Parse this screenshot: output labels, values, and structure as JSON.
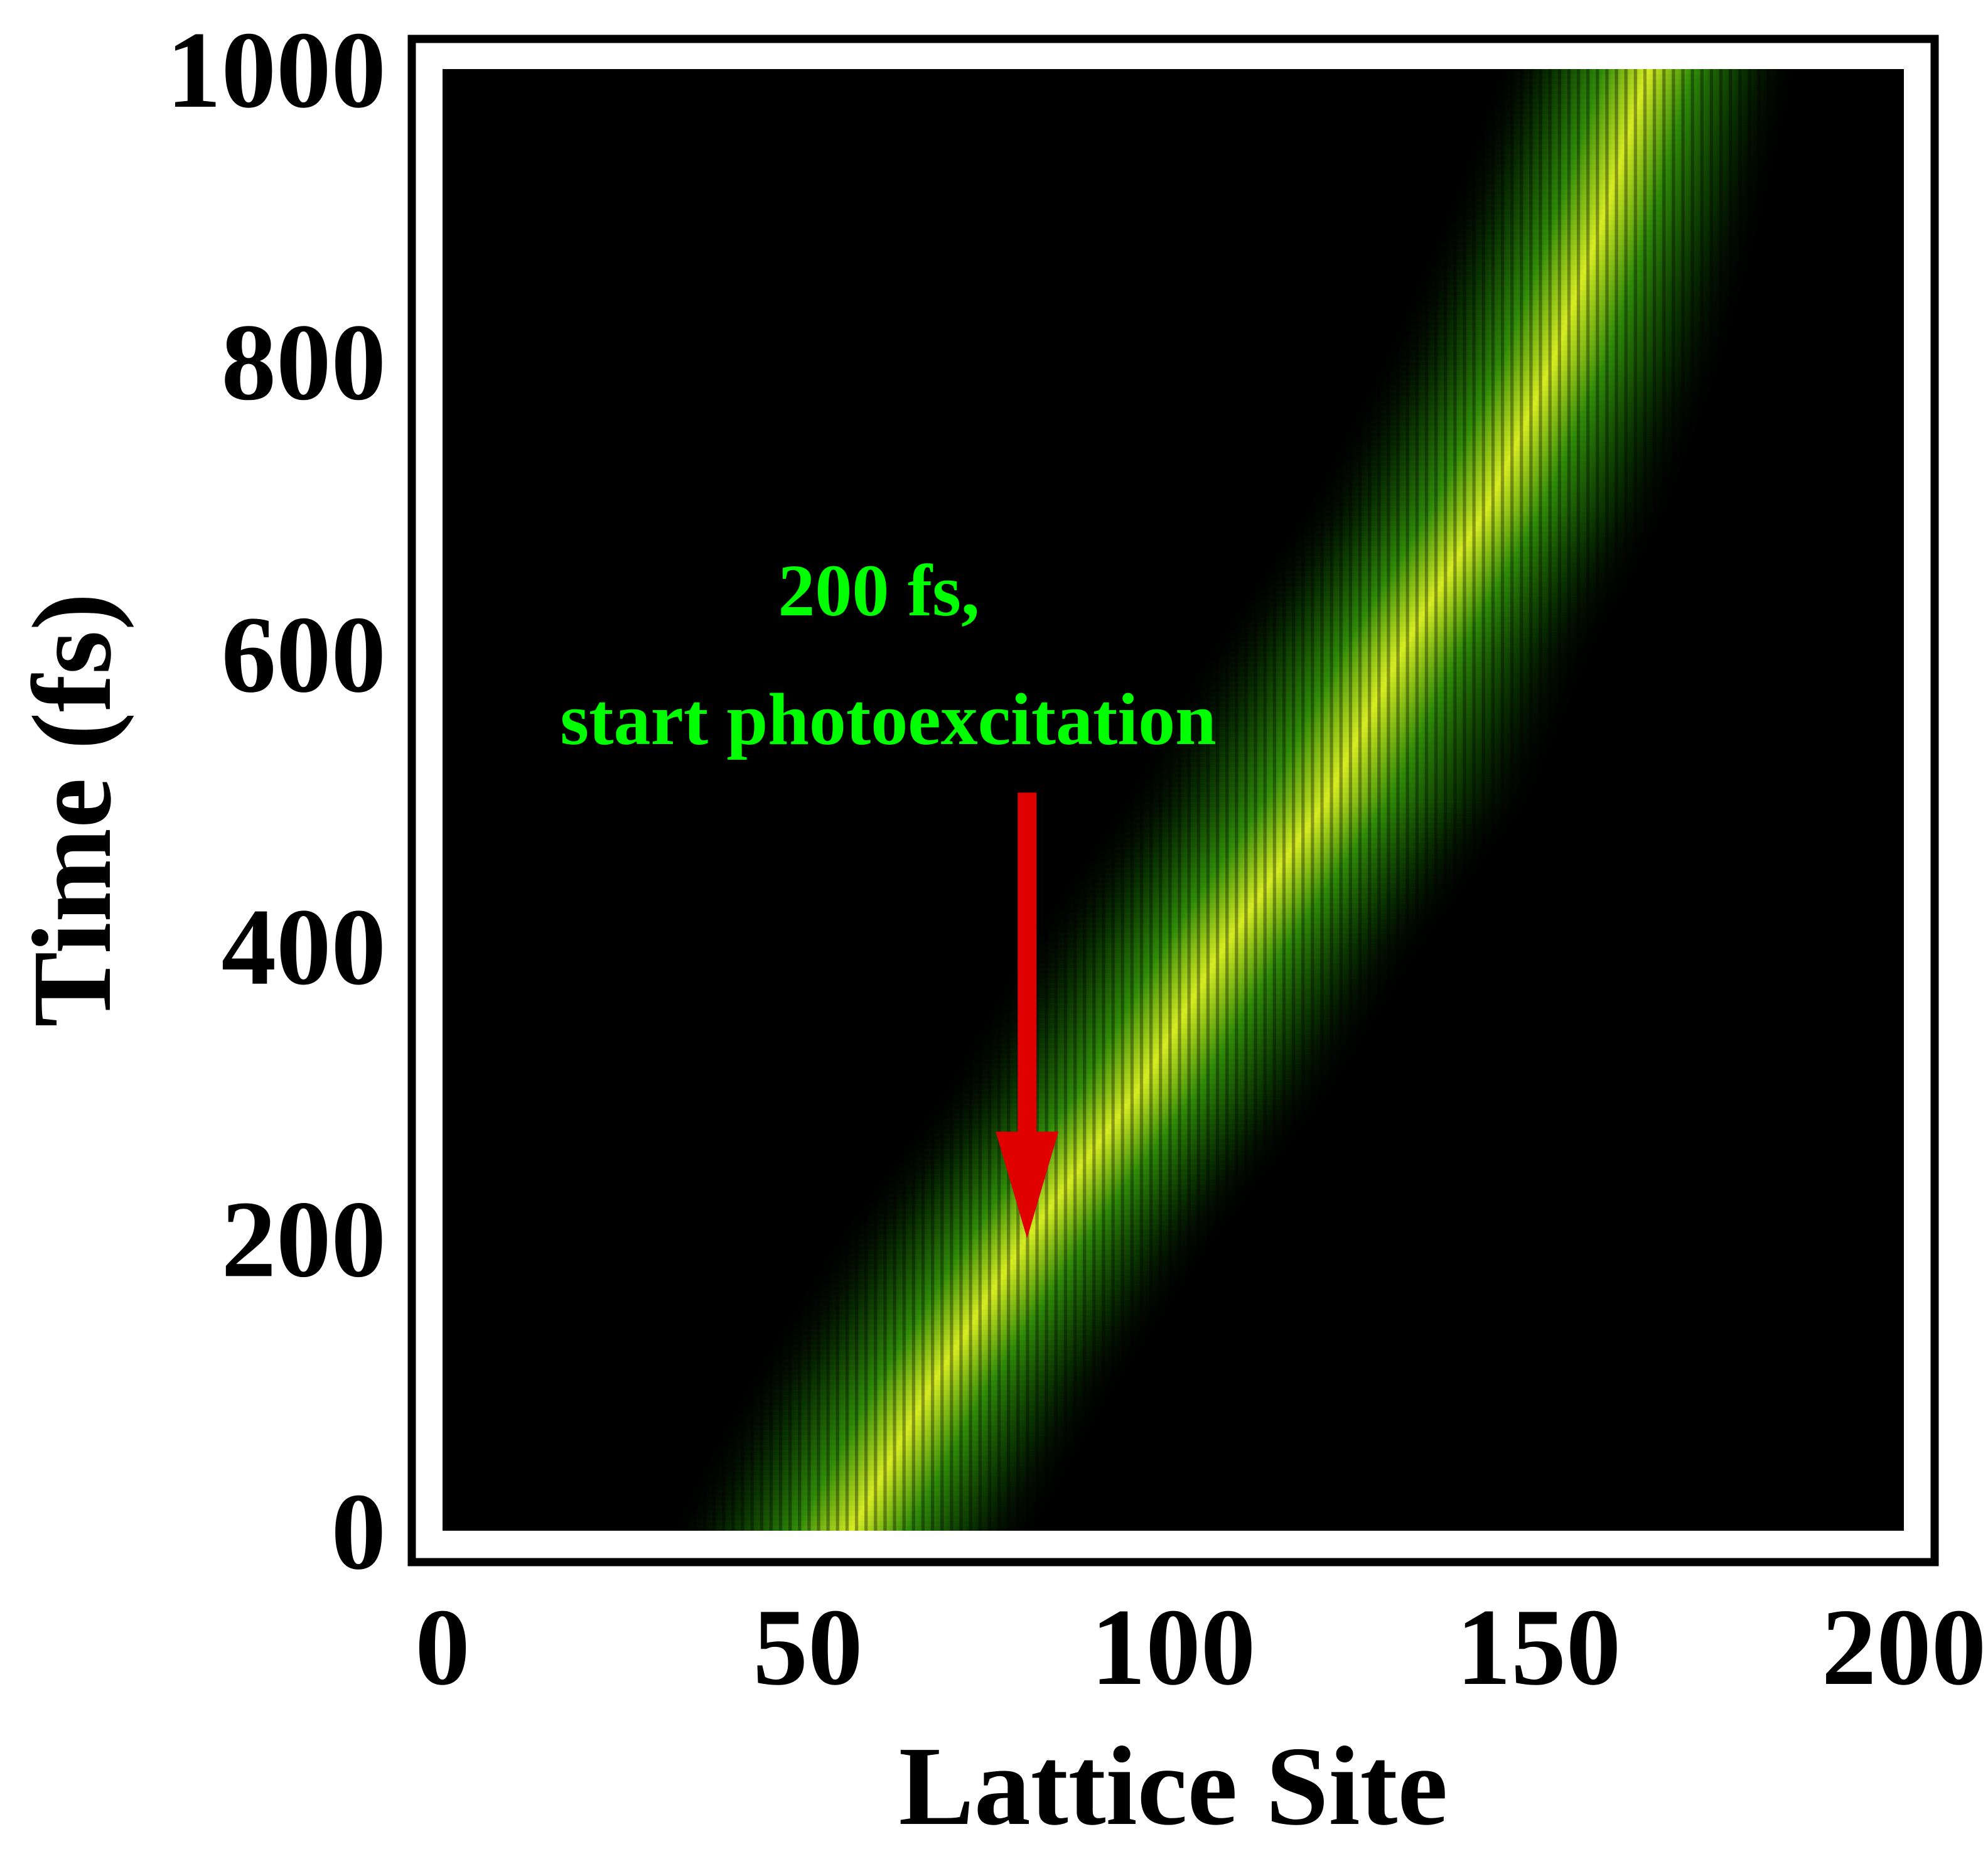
{
  "chart_data": {
    "type": "heatmap",
    "title": "",
    "xlabel": "Lattice Site",
    "ylabel": "Time (fs)",
    "xlim": [
      0,
      200
    ],
    "ylim": [
      0,
      1000
    ],
    "xticks": [
      "0",
      "50",
      "100",
      "150",
      "200"
    ],
    "yticks": [
      "0",
      "200",
      "400",
      "600",
      "800",
      "1000"
    ],
    "grid": false,
    "colormap": {
      "background": "#000000",
      "low": "#0a3a00",
      "mid": "#2f8a08",
      "high": "#d6ec22"
    },
    "band": {
      "description_points": [
        {
          "time": 0,
          "site": 56
        },
        {
          "time": 100,
          "site": 67
        },
        {
          "time": 200,
          "site": 80
        },
        {
          "time": 300,
          "site": 95
        },
        {
          "time": 400,
          "site": 107
        },
        {
          "time": 500,
          "site": 121
        },
        {
          "time": 600,
          "site": 131
        },
        {
          "time": 700,
          "site": 143
        },
        {
          "time": 800,
          "site": 152
        },
        {
          "time": 900,
          "site": 159
        },
        {
          "time": 1000,
          "site": 165
        }
      ],
      "width_sites": [
        {
          "time": 0,
          "width": 16
        },
        {
          "time": 500,
          "width": 18
        },
        {
          "time": 1000,
          "width": 13
        }
      ],
      "stripe_period_sites": 1.3
    },
    "annotation": {
      "line1": "200 fs,",
      "line2": "start photoexcitation",
      "text_color": "#00ff00",
      "arrow_color": "#e00000",
      "arrow_tip": {
        "site": 80,
        "time": 200
      },
      "arrow_tail": {
        "site": 80,
        "time": 505
      }
    }
  }
}
